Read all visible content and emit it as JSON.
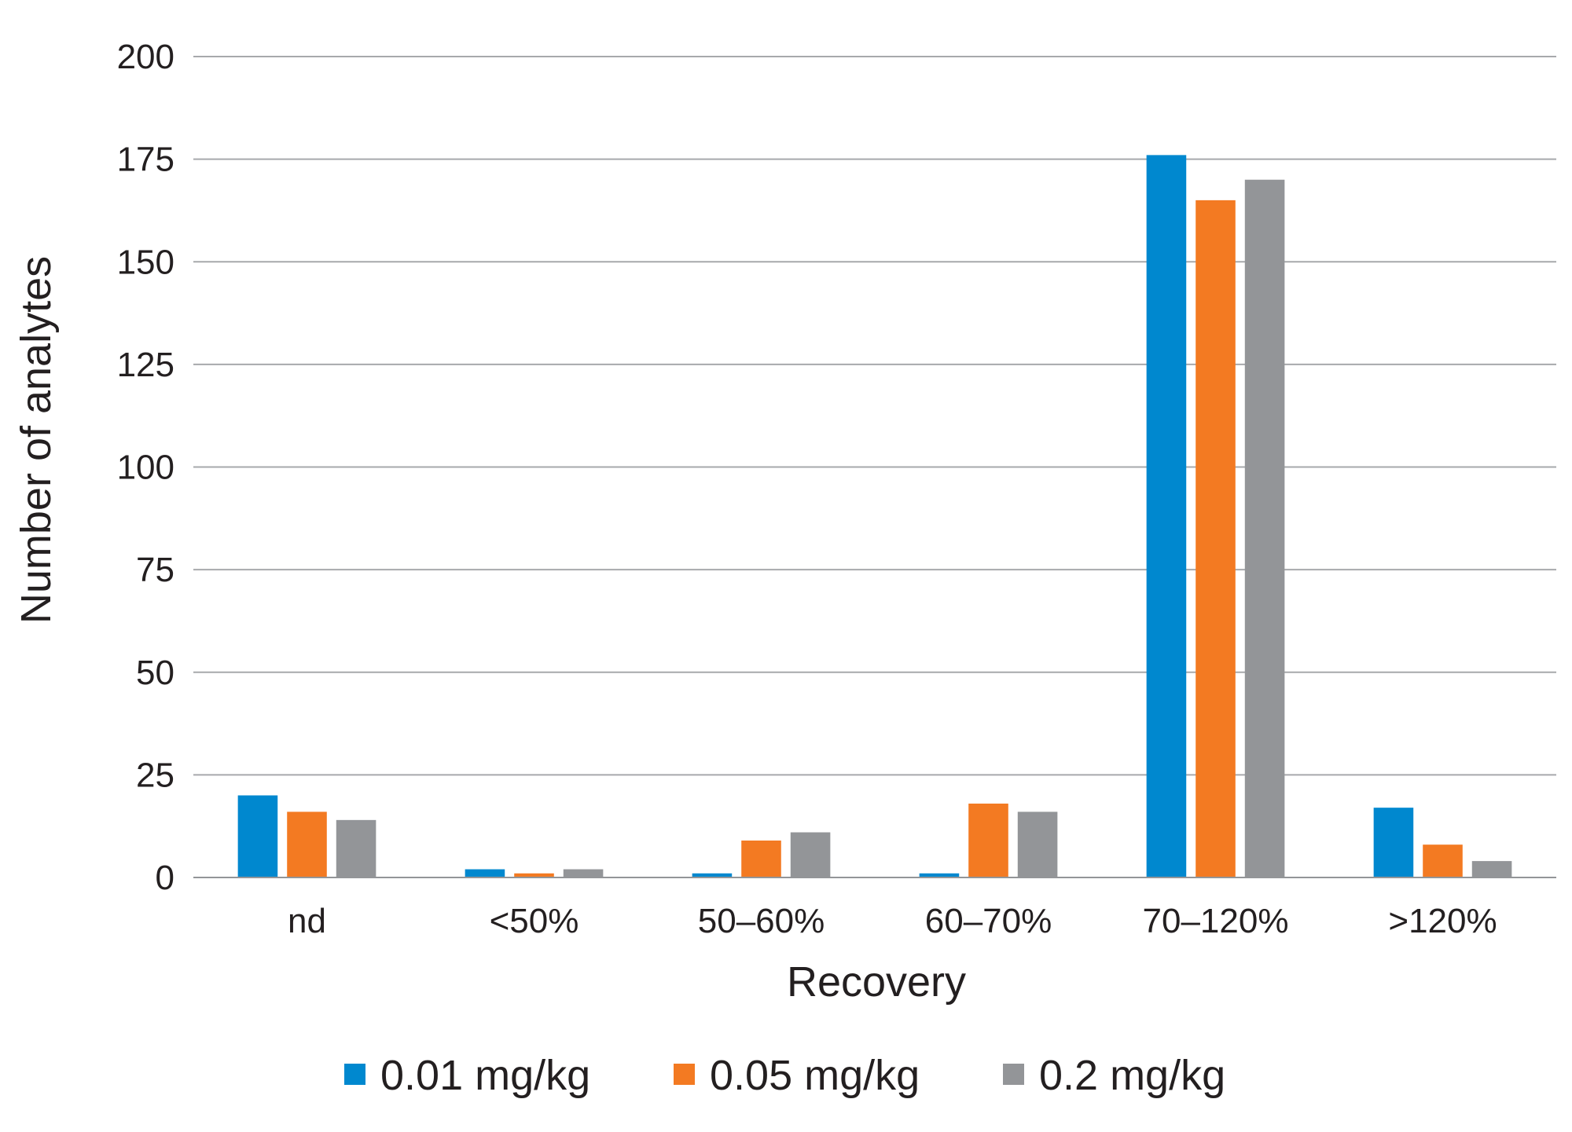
{
  "chart_data": {
    "type": "bar",
    "title": "",
    "xlabel": "Recovery",
    "ylabel": "Number of analytes",
    "categories": [
      "nd",
      "<50%",
      "50–60%",
      "60–70%",
      "70–120%",
      ">120%"
    ],
    "ylim": [
      0,
      200
    ],
    "yticks": [
      "0",
      "25",
      "50",
      "75",
      "100",
      "125",
      "150",
      "175",
      "200"
    ],
    "grid": true,
    "legend_position": "bottom",
    "series": [
      {
        "name": "0.01 mg/kg",
        "color": "#0088cf",
        "values": [
          20,
          2,
          1,
          1,
          176,
          17
        ]
      },
      {
        "name": "0.05 mg/kg",
        "color": "#f37a22",
        "values": [
          16,
          1,
          9,
          18,
          165,
          8
        ]
      },
      {
        "name": "0.2 mg/kg",
        "color": "#939598",
        "values": [
          14,
          2,
          11,
          16,
          170,
          4
        ]
      }
    ]
  }
}
